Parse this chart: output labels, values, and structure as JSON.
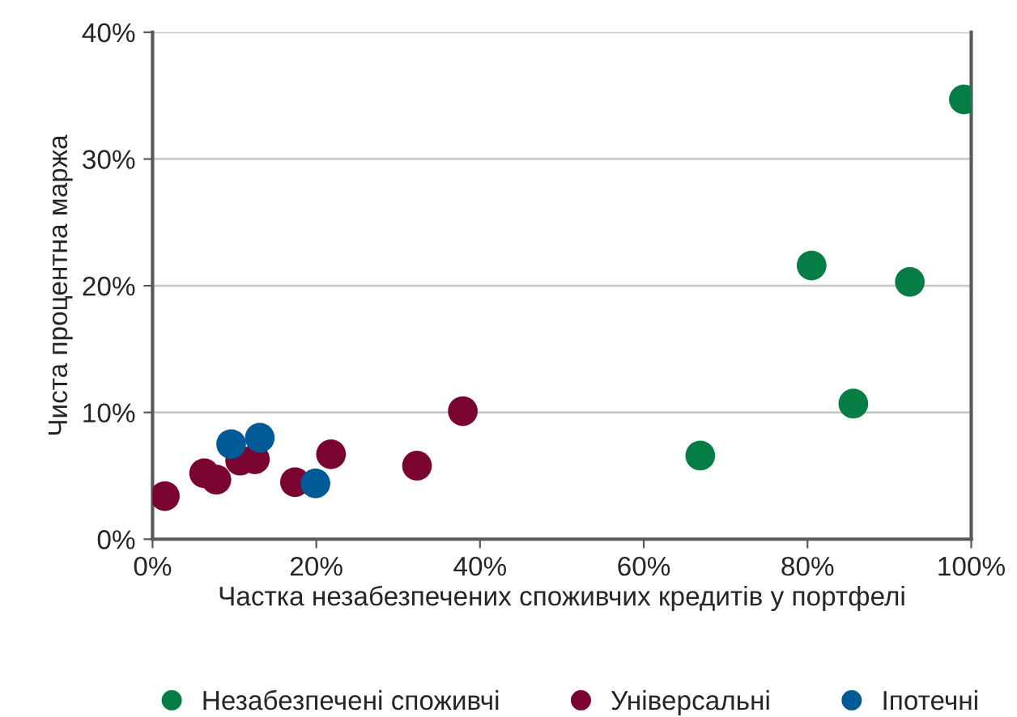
{
  "chart_data": {
    "type": "scatter",
    "xlabel": "Частка незабезпечених споживчих кредитів у портфелі",
    "ylabel": "Чиста процентна маржа",
    "series": [
      {
        "name": "Незабезпечені споживчі",
        "color": "#067d45",
        "x": [
          66.9,
          80.5,
          85.6,
          92.5,
          99.1
        ],
        "values": [
          6.6,
          21.6,
          10.7,
          20.3,
          34.7
        ]
      },
      {
        "name": "Універсальні",
        "color": "#7a0431",
        "x": [
          1.5,
          6.3,
          7.8,
          10.7,
          12.5,
          17.4,
          21.8,
          32.3,
          37.9
        ],
        "values": [
          3.4,
          5.2,
          4.7,
          6.2,
          6.3,
          4.5,
          6.7,
          5.8,
          10.1
        ]
      },
      {
        "name": "Іпотечні",
        "color": "#005a96",
        "x": [
          9.6,
          13.1,
          19.9
        ],
        "values": [
          7.5,
          8.0,
          4.4
        ]
      }
    ],
    "xlim": [
      0,
      100
    ],
    "ylim": [
      0,
      40
    ],
    "xticks": [
      {
        "value": 0,
        "label": "0%"
      },
      {
        "value": 20,
        "label": "20%"
      },
      {
        "value": 40,
        "label": "40%"
      },
      {
        "value": 60,
        "label": "60%"
      },
      {
        "value": 80,
        "label": "80%"
      },
      {
        "value": 100,
        "label": "100%"
      }
    ],
    "yticks": [
      {
        "value": 0,
        "label": "0%"
      },
      {
        "value": 10,
        "label": "10%"
      },
      {
        "value": 20,
        "label": "20%"
      },
      {
        "value": 30,
        "label": "30%"
      },
      {
        "value": 40,
        "label": "40%"
      }
    ],
    "grid": "y",
    "legend": "bottom",
    "marker": "circle"
  }
}
